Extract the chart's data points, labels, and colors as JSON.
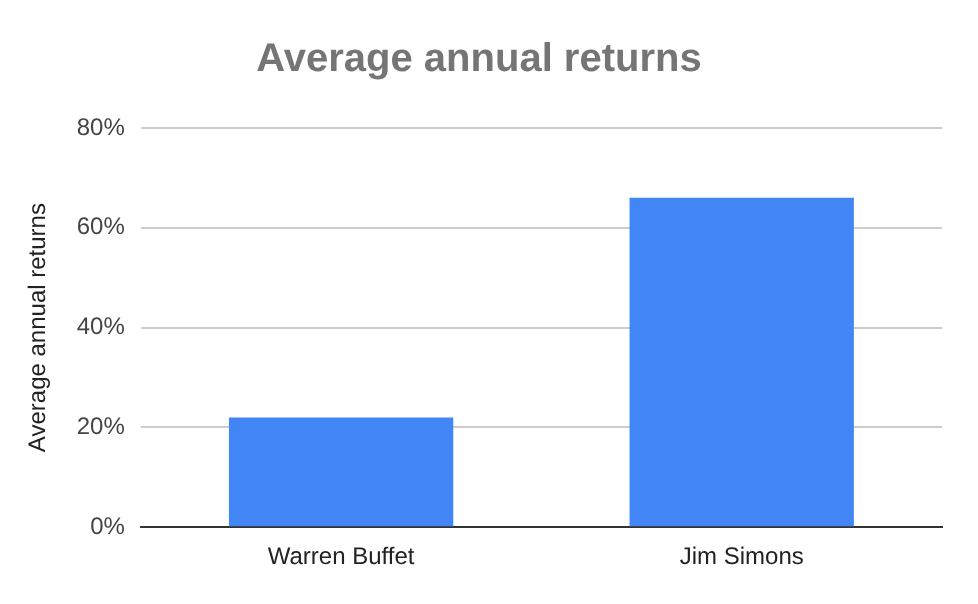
{
  "chart_data": {
    "type": "bar",
    "title": "Average annual returns",
    "ylabel": "Average annual returns",
    "categories": [
      "Warren Buffet",
      "Jim Simons"
    ],
    "values": [
      22,
      66
    ],
    "color": "#4285f4",
    "ylim": [
      0,
      80
    ],
    "yticks": [
      {
        "value": 0,
        "label": "0%"
      },
      {
        "value": 20,
        "label": "20%"
      },
      {
        "value": 40,
        "label": "40%"
      },
      {
        "value": 60,
        "label": "60%"
      },
      {
        "value": 80,
        "label": "80%"
      }
    ],
    "grid": "y",
    "legend": false
  }
}
